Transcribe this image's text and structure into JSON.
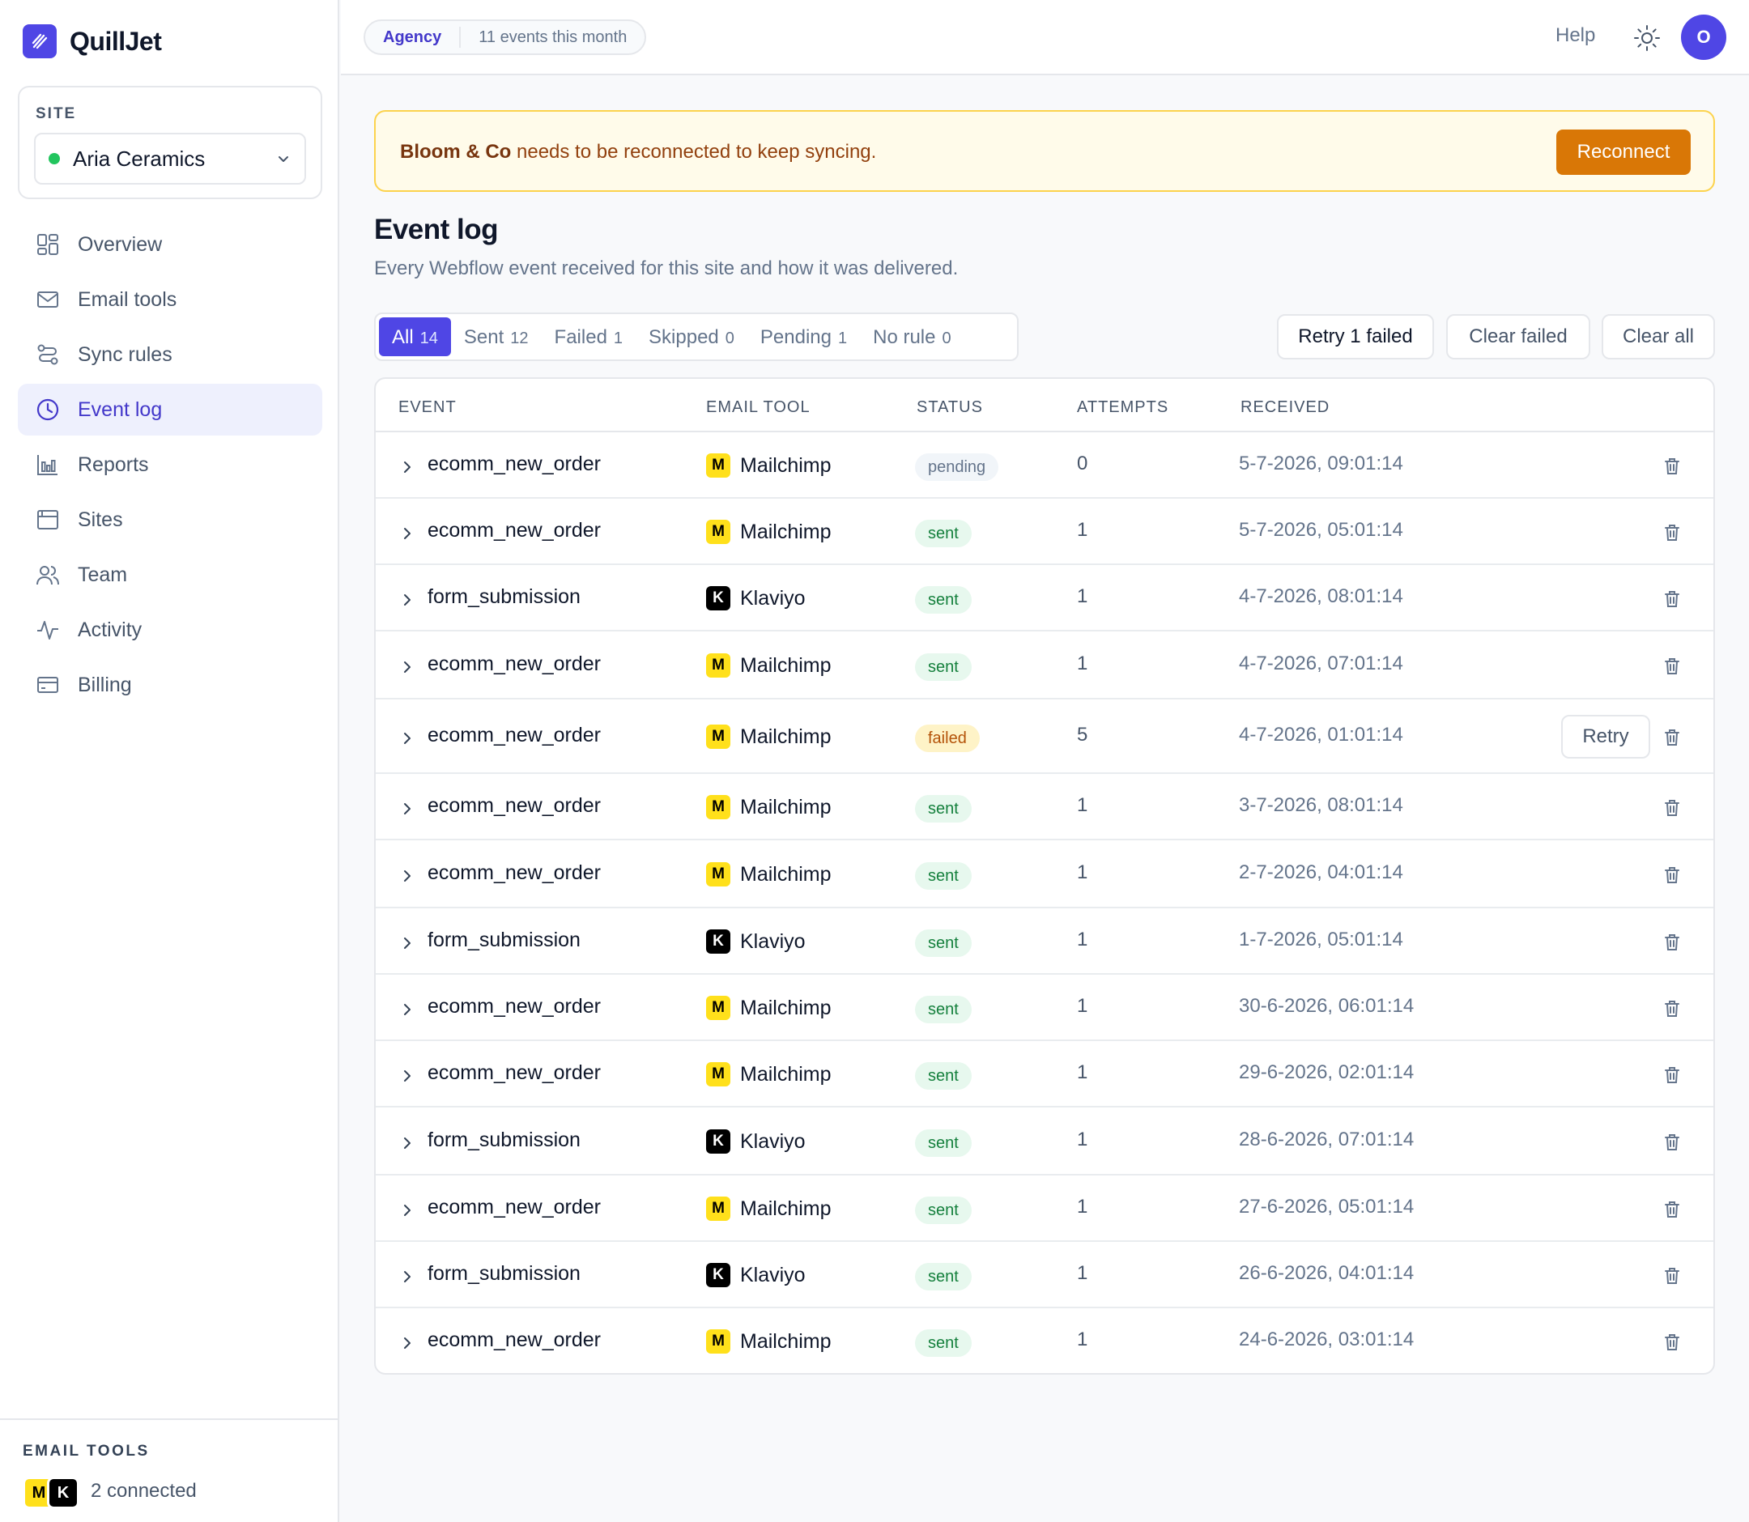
{
  "app": {
    "name": "QuillJet"
  },
  "site": {
    "label": "SITE",
    "name": "Aria Ceramics"
  },
  "nav": [
    {
      "label": "Overview",
      "icon": "grid-icon"
    },
    {
      "label": "Email tools",
      "icon": "mail-icon"
    },
    {
      "label": "Sync rules",
      "icon": "route-icon"
    },
    {
      "label": "Event log",
      "icon": "clock-icon",
      "active": true
    },
    {
      "label": "Reports",
      "icon": "bar-chart-icon"
    },
    {
      "label": "Sites",
      "icon": "browser-icon"
    },
    {
      "label": "Team",
      "icon": "users-icon"
    },
    {
      "label": "Activity",
      "icon": "activity-icon"
    },
    {
      "label": "Billing",
      "icon": "credit-card-icon"
    }
  ],
  "footer": {
    "label": "EMAIL TOOLS",
    "logo_m": "M",
    "logo_k": "K",
    "count": "2 connected"
  },
  "header": {
    "plan": "Agency",
    "usage": "11 events this month",
    "help": "Help",
    "avatar": "O"
  },
  "banner": {
    "name": "Bloom & Co",
    "message": " needs to be reconnected to keep syncing.",
    "button": "Reconnect"
  },
  "page": {
    "title": "Event log",
    "subtitle": "Every Webflow event received for this site and how it was delivered."
  },
  "tabs": [
    {
      "label": "All",
      "count": "14",
      "active": true
    },
    {
      "label": "Sent",
      "count": "12"
    },
    {
      "label": "Failed",
      "count": "1"
    },
    {
      "label": "Skipped",
      "count": "0"
    },
    {
      "label": "Pending",
      "count": "1"
    },
    {
      "label": "No rule",
      "count": "0"
    }
  ],
  "actions": {
    "retry_failed": "Retry 1 failed",
    "clear_failed": "Clear failed",
    "clear_all": "Clear all"
  },
  "table": {
    "columns": {
      "event": "EVENT",
      "tool": "EMAIL TOOL",
      "status": "STATUS",
      "attempts": "ATTEMPTS",
      "received": "RECEIVED"
    },
    "retry_label": "Retry",
    "rows": [
      {
        "event": "ecomm_new_order",
        "tool": "Mailchimp",
        "logo": "M",
        "status": "pending",
        "attempts": "0",
        "received": "5-7-2026, 09:01:14"
      },
      {
        "event": "ecomm_new_order",
        "tool": "Mailchimp",
        "logo": "M",
        "status": "sent",
        "attempts": "1",
        "received": "5-7-2026, 05:01:14"
      },
      {
        "event": "form_submission",
        "tool": "Klaviyo",
        "logo": "K",
        "status": "sent",
        "attempts": "1",
        "received": "4-7-2026, 08:01:14"
      },
      {
        "event": "ecomm_new_order",
        "tool": "Mailchimp",
        "logo": "M",
        "status": "sent",
        "attempts": "1",
        "received": "4-7-2026, 07:01:14"
      },
      {
        "event": "ecomm_new_order",
        "tool": "Mailchimp",
        "logo": "M",
        "status": "failed",
        "attempts": "5",
        "received": "4-7-2026, 01:01:14",
        "retry": true
      },
      {
        "event": "ecomm_new_order",
        "tool": "Mailchimp",
        "logo": "M",
        "status": "sent",
        "attempts": "1",
        "received": "3-7-2026, 08:01:14"
      },
      {
        "event": "ecomm_new_order",
        "tool": "Mailchimp",
        "logo": "M",
        "status": "sent",
        "attempts": "1",
        "received": "2-7-2026, 04:01:14"
      },
      {
        "event": "form_submission",
        "tool": "Klaviyo",
        "logo": "K",
        "status": "sent",
        "attempts": "1",
        "received": "1-7-2026, 05:01:14"
      },
      {
        "event": "ecomm_new_order",
        "tool": "Mailchimp",
        "logo": "M",
        "status": "sent",
        "attempts": "1",
        "received": "30-6-2026, 06:01:14"
      },
      {
        "event": "ecomm_new_order",
        "tool": "Mailchimp",
        "logo": "M",
        "status": "sent",
        "attempts": "1",
        "received": "29-6-2026, 02:01:14"
      },
      {
        "event": "form_submission",
        "tool": "Klaviyo",
        "logo": "K",
        "status": "sent",
        "attempts": "1",
        "received": "28-6-2026, 07:01:14"
      },
      {
        "event": "ecomm_new_order",
        "tool": "Mailchimp",
        "logo": "M",
        "status": "sent",
        "attempts": "1",
        "received": "27-6-2026, 05:01:14"
      },
      {
        "event": "form_submission",
        "tool": "Klaviyo",
        "logo": "K",
        "status": "sent",
        "attempts": "1",
        "received": "26-6-2026, 04:01:14"
      },
      {
        "event": "ecomm_new_order",
        "tool": "Mailchimp",
        "logo": "M",
        "status": "sent",
        "attempts": "1",
        "received": "24-6-2026, 03:01:14"
      }
    ]
  },
  "colors": {
    "accent": "#4f46e5",
    "warning": "#d97706",
    "success": "#22c55e"
  }
}
